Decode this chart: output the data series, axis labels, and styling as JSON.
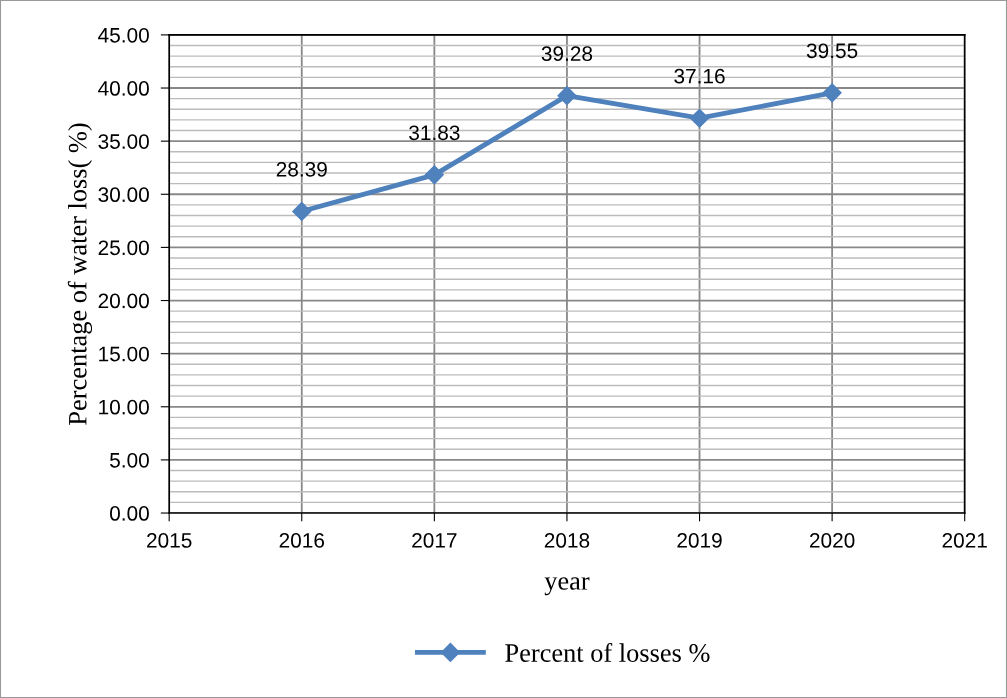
{
  "chart_data": {
    "type": "line",
    "xlabel": "year",
    "ylabel": "Percentage of water loss( %)",
    "x": [
      2016,
      2017,
      2018,
      2019,
      2020
    ],
    "series": [
      {
        "name": "Percent of losses %",
        "color": "#4f81bd",
        "values": [
          28.39,
          31.83,
          39.28,
          37.16,
          39.55
        ]
      }
    ],
    "xlim": [
      2015,
      2021
    ],
    "xticks": [
      2015,
      2016,
      2017,
      2018,
      2019,
      2020,
      2021
    ],
    "ylim": [
      0,
      45
    ],
    "yticks": [
      {
        "value": 0,
        "label": "0.00"
      },
      {
        "value": 5,
        "label": "5.00"
      },
      {
        "value": 10,
        "label": "10.00"
      },
      {
        "value": 15,
        "label": "15.00"
      },
      {
        "value": 20,
        "label": "20.00"
      },
      {
        "value": 25,
        "label": "25.00"
      },
      {
        "value": 30,
        "label": "30.00"
      },
      {
        "value": 35,
        "label": "35.00"
      },
      {
        "value": 40,
        "label": "40.00"
      },
      {
        "value": 45,
        "label": "45.00"
      }
    ],
    "grid": true,
    "legend": "bottom",
    "marker": "diamond",
    "line_style": "solid",
    "data_labels": true
  }
}
